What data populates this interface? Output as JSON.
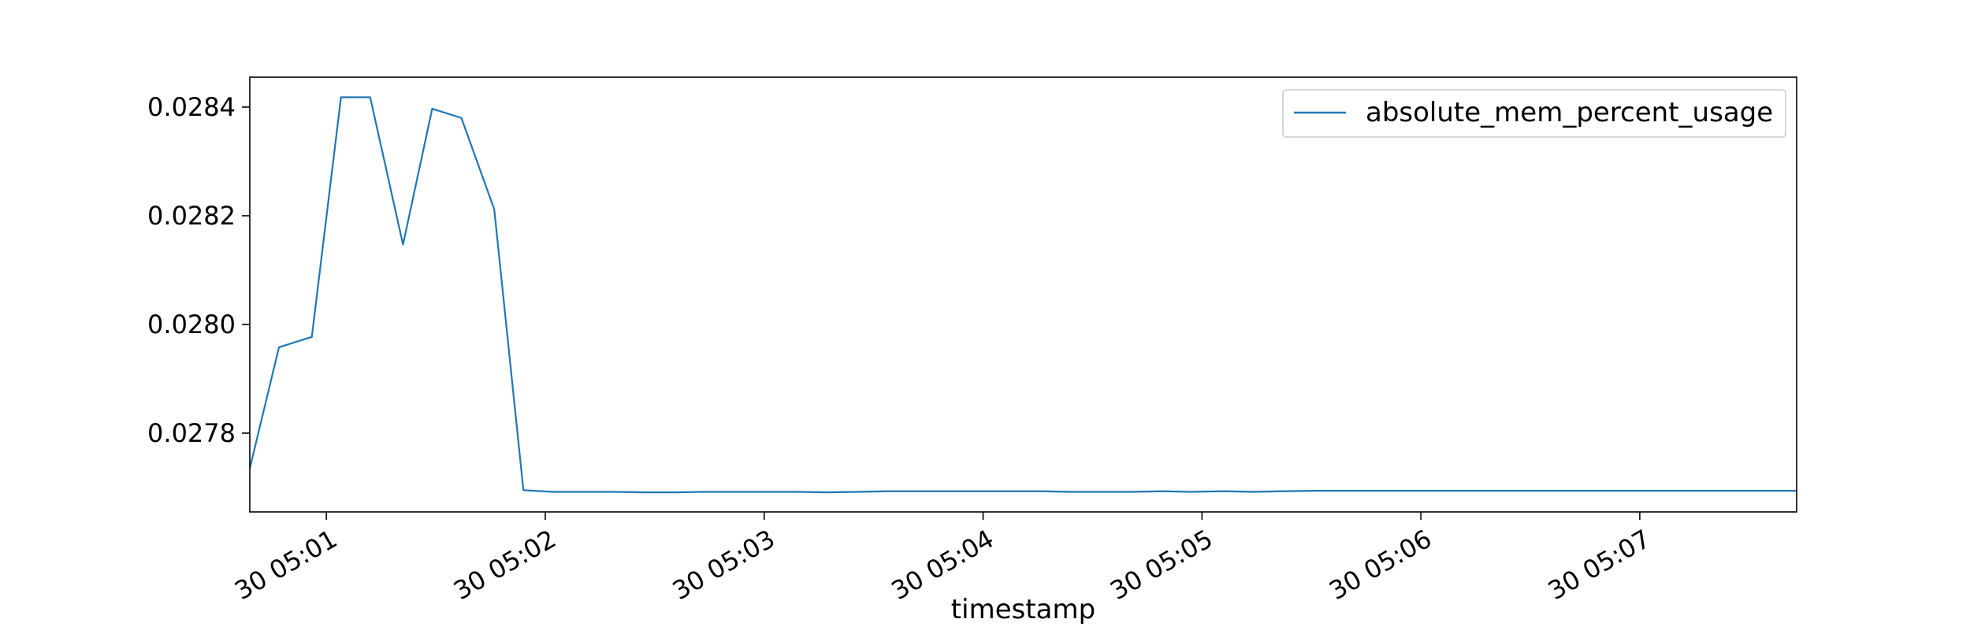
{
  "chart_data": {
    "type": "line",
    "title": "",
    "xlabel": "timestamp",
    "ylabel": "",
    "x_tick_labels": [
      "30 05:01",
      "30 05:02",
      "30 05:03",
      "30 05:04",
      "30 05:05",
      "30 05:06",
      "30 05:07"
    ],
    "y_tick_labels": [
      "0.0278",
      "0.0280",
      "0.0282",
      "0.0284"
    ],
    "y_ticks": [
      0.0278,
      0.028,
      0.0282,
      0.0284
    ],
    "xlim": [
      "30 05:00:39",
      "30 05:07:43"
    ],
    "ylim": [
      0.027655,
      0.028455
    ],
    "grid": false,
    "legend": {
      "position": "top-right",
      "entries": [
        "absolute_mem_percent_usage"
      ]
    },
    "series": [
      {
        "name": "absolute_mem_percent_usage",
        "color": "#1f77b4",
        "x": [
          "30 05:00:39",
          "30 05:00:47",
          "30 05:00:56",
          "30 05:01:04",
          "30 05:01:12",
          "30 05:01:21",
          "30 05:01:29",
          "30 05:01:37",
          "30 05:01:46",
          "30 05:01:54",
          "30 05:02:02",
          "30 05:02:11",
          "30 05:02:19",
          "30 05:02:27",
          "30 05:02:36",
          "30 05:02:44",
          "30 05:02:52",
          "30 05:03:01",
          "30 05:03:09",
          "30 05:03:17",
          "30 05:03:26",
          "30 05:03:34",
          "30 05:03:42",
          "30 05:03:51",
          "30 05:03:59",
          "30 05:04:07",
          "30 05:04:16",
          "30 05:04:24",
          "30 05:04:32",
          "30 05:04:41",
          "30 05:04:49",
          "30 05:04:57",
          "30 05:05:06",
          "30 05:05:14",
          "30 05:05:22",
          "30 05:05:31",
          "30 05:05:39",
          "30 05:05:47",
          "30 05:05:56",
          "30 05:06:04",
          "30 05:06:12",
          "30 05:06:21",
          "30 05:06:29",
          "30 05:06:37",
          "30 05:06:46",
          "30 05:06:54",
          "30 05:07:02",
          "30 05:07:11",
          "30 05:07:19",
          "30 05:07:27",
          "30 05:07:36",
          "30 05:07:43"
        ],
        "values": [
          0.027735,
          0.027958,
          0.027977,
          0.028418,
          0.028418,
          0.028147,
          0.028397,
          0.02838,
          0.028212,
          0.027695,
          0.027692,
          0.027692,
          0.027692,
          0.027691,
          0.027691,
          0.027692,
          0.027692,
          0.027692,
          0.027692,
          0.027691,
          0.027692,
          0.027693,
          0.027693,
          0.027693,
          0.027693,
          0.027693,
          0.027693,
          0.027692,
          0.027692,
          0.027692,
          0.027693,
          0.027692,
          0.027693,
          0.027692,
          0.027693,
          0.027694,
          0.027694,
          0.027694,
          0.027694,
          0.027694,
          0.027694,
          0.027694,
          0.027694,
          0.027694,
          0.027694,
          0.027694,
          0.027694,
          0.027694,
          0.027694,
          0.027694,
          0.027694,
          0.027694
        ]
      }
    ]
  }
}
